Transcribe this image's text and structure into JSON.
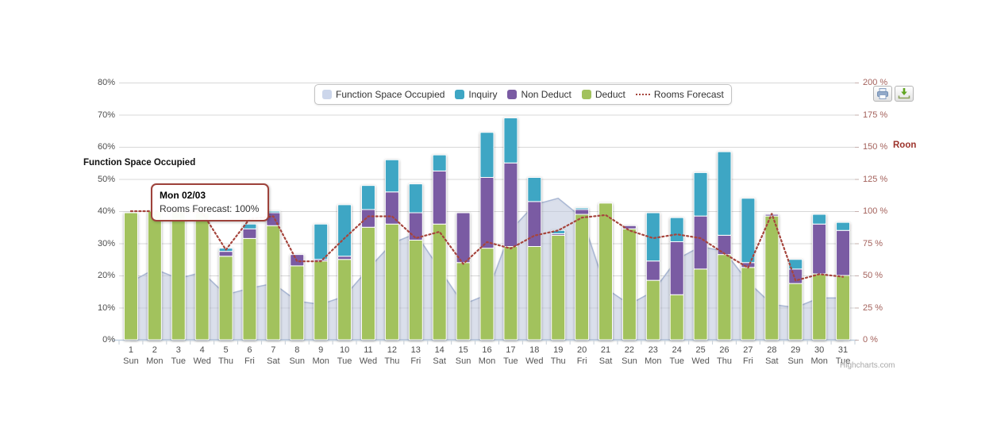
{
  "legend": {
    "items": [
      {
        "label": "Function Space Occupied",
        "color": "#ccd6eb",
        "marker": "square"
      },
      {
        "label": "Inquiry",
        "color": "#3ea6c4",
        "marker": "square"
      },
      {
        "label": "Non Deduct",
        "color": "#7a5ba3",
        "marker": "square"
      },
      {
        "label": "Deduct",
        "color": "#a2c25d",
        "marker": "square"
      },
      {
        "label": "Rooms Forecast",
        "color": "#a6453d",
        "marker": "dotted-line"
      }
    ]
  },
  "tooltip": {
    "title": "Mon 02/03",
    "line": "Rooms Forecast: 100%"
  },
  "y_axis_left": {
    "title": "Function Space Occupied",
    "ticks": [
      "0%",
      "10%",
      "20%",
      "30%",
      "40%",
      "50%",
      "60%",
      "70%",
      "80%"
    ],
    "min": 0,
    "max": 80
  },
  "y_axis_right": {
    "title": "Roon",
    "ticks": [
      "0 %",
      "25 %",
      "50 %",
      "75 %",
      "100 %",
      "125 %",
      "150 %",
      "175 %",
      "200 %"
    ],
    "min": 0,
    "max": 200
  },
  "toolbar": {
    "print_label": "print chart",
    "download_label": "download chart"
  },
  "credits": "Highcharts.com",
  "chart_data": {
    "type": "combo (area + stacked bar + dotted line)",
    "categories_day": [
      1,
      2,
      3,
      4,
      5,
      6,
      7,
      8,
      9,
      10,
      11,
      12,
      13,
      14,
      15,
      16,
      17,
      18,
      19,
      20,
      21,
      22,
      23,
      24,
      25,
      26,
      27,
      28,
      29,
      30,
      31
    ],
    "categories_weekday": [
      "Sun",
      "Mon",
      "Tue",
      "Wed",
      "Thu",
      "Fri",
      "Sat",
      "Sun",
      "Mon",
      "Tue",
      "Wed",
      "Thu",
      "Fri",
      "Sat",
      "Sun",
      "Mon",
      "Tue",
      "Wed",
      "Thu",
      "Fri",
      "Sat",
      "Sun",
      "Mon",
      "Tue",
      "Wed",
      "Thu",
      "Fri",
      "Sat",
      "Sun",
      "Mon",
      "Tue"
    ],
    "axis_left_range": [
      0,
      80
    ],
    "axis_right_range": [
      0,
      200
    ],
    "grid": "horizontal",
    "legend_position": "top-center",
    "series": [
      {
        "name": "Function Space Occupied",
        "type": "area",
        "axis": "left",
        "color": "#ccd6eb",
        "border_color": "#a9b7d4",
        "values": [
          18,
          22,
          19,
          21,
          14,
          16,
          17.5,
          12,
          11,
          13.5,
          22,
          30,
          33,
          22,
          11,
          14,
          34,
          42,
          44,
          38,
          16,
          11,
          15,
          25,
          29,
          27.5,
          18,
          11,
          10,
          13,
          13
        ]
      },
      {
        "name": "Deduct",
        "type": "bar",
        "stack_order": 1,
        "axis": "left",
        "color": "#a2c25d",
        "values": [
          39.5,
          40,
          40,
          39.5,
          26,
          31.5,
          35.5,
          23,
          24.5,
          25,
          35,
          36,
          31,
          36,
          24,
          28.5,
          29,
          29,
          32.5,
          39,
          42.5,
          34.5,
          18.5,
          14,
          22,
          26.5,
          22.5,
          38.5,
          17.5,
          20.5,
          20
        ]
      },
      {
        "name": "Non Deduct",
        "type": "bar",
        "stack_order": 2,
        "axis": "left",
        "color": "#7a5ba3",
        "values": [
          0,
          0,
          0,
          0,
          1.5,
          3,
          4,
          3.5,
          0.5,
          1,
          5.5,
          10,
          8.5,
          16.5,
          15.5,
          22,
          26,
          14,
          0.5,
          1.5,
          0,
          1,
          6,
          16.5,
          16.5,
          6,
          1.5,
          0.5,
          4.5,
          15.5,
          14
        ]
      },
      {
        "name": "Inquiry",
        "type": "bar",
        "stack_order": 3,
        "axis": "left",
        "color": "#3ea6c4",
        "values": [
          0,
          0,
          0,
          0,
          1,
          1.5,
          0.5,
          0,
          11,
          16,
          7.5,
          10,
          9,
          5,
          0,
          14,
          14,
          7.5,
          1,
          0.5,
          0,
          0,
          15,
          7.5,
          13.5,
          26,
          20,
          0,
          3,
          3,
          2.5
        ]
      },
      {
        "name": "Rooms Forecast",
        "type": "dotted-line",
        "axis": "right",
        "color": "#a6453d",
        "values": [
          100,
          100,
          100,
          99,
          70,
          94,
          96,
          61,
          61,
          79,
          96,
          96,
          79,
          84,
          59,
          76,
          71,
          81,
          85,
          95,
          97,
          85,
          79,
          82,
          79,
          67,
          56,
          98,
          46,
          51,
          49
        ]
      }
    ]
  }
}
